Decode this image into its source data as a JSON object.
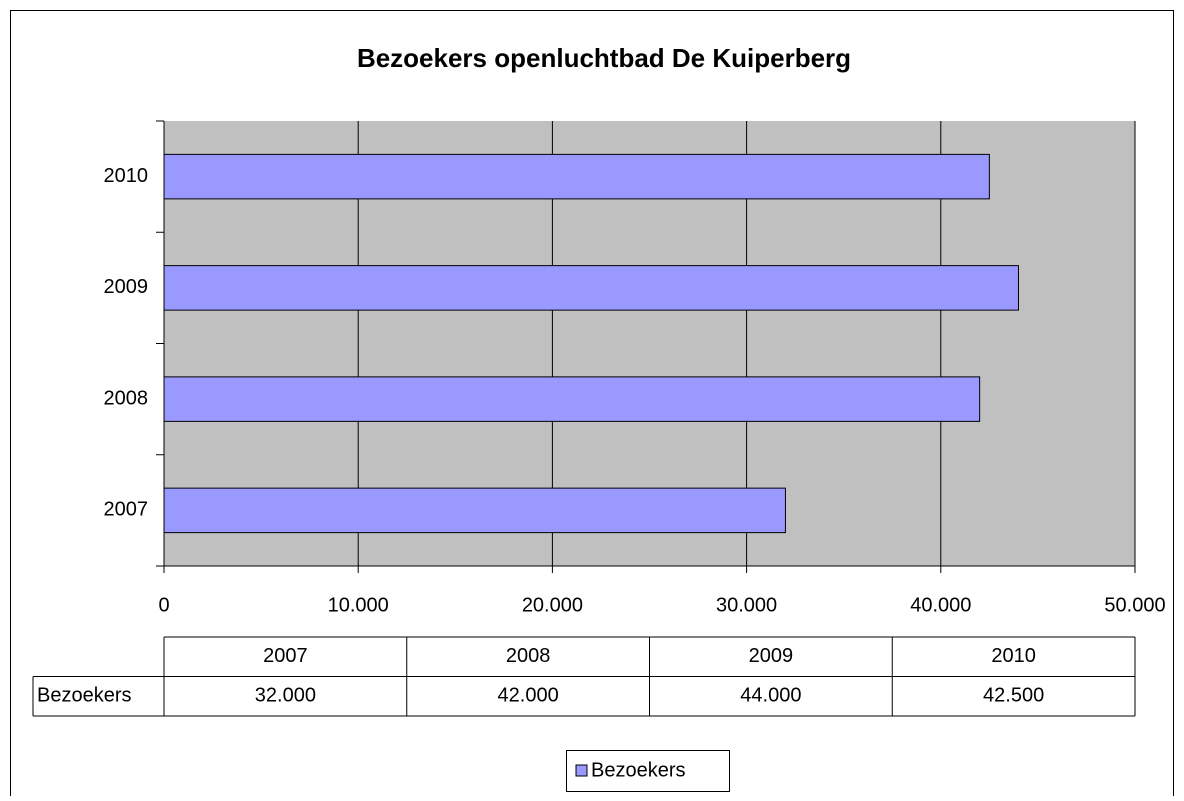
{
  "chart_data": {
    "type": "barh",
    "title": "Bezoekers openluchtbad De Kuiperberg",
    "categories": [
      "2007",
      "2008",
      "2009",
      "2010"
    ],
    "series": [
      {
        "name": "Bezoekers",
        "color": "#9999ff",
        "values": [
          32000,
          42000,
          44000,
          42500
        ],
        "value_labels": [
          "32.000",
          "42.000",
          "44.000",
          "42.500"
        ]
      }
    ],
    "xlim": [
      0,
      50000
    ],
    "xticks": [
      0,
      {
        "value": 10000,
        "label": "10.000"
      },
      {
        "value": 20000,
        "label": "20.000"
      },
      {
        "value": 30000,
        "label": "30.000"
      },
      {
        "value": 40000,
        "label": "40.000"
      },
      {
        "value": 50000,
        "label": "50.000"
      }
    ],
    "grid": true,
    "plot_background": "#c0c0c0",
    "legend": "bottom",
    "data_table": true
  }
}
